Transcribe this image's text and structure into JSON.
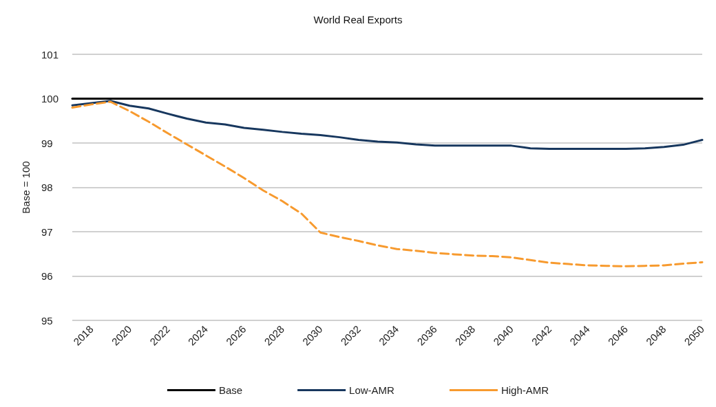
{
  "chart_data": {
    "type": "line",
    "title": "World Real Exports",
    "ylabel": "Base = 100",
    "categories": [
      null,
      "2018",
      null,
      "2020",
      null,
      "2022",
      null,
      "2024",
      null,
      "2026",
      null,
      "2028",
      null,
      "2030",
      null,
      "2032",
      null,
      "2034",
      null,
      "2036",
      null,
      "2038",
      null,
      "2040",
      null,
      "2042",
      null,
      "2044",
      null,
      "2046",
      null,
      "2048",
      null,
      "2050"
    ],
    "series": [
      {
        "name": "Base",
        "color": "#000000",
        "line_style": "solid",
        "values": [
          100,
          100,
          100,
          100,
          100,
          100,
          100,
          100,
          100,
          100,
          100,
          100,
          100,
          100,
          100,
          100,
          100,
          100,
          100,
          100,
          100,
          100,
          100,
          100,
          100,
          100,
          100,
          100,
          100,
          100,
          100,
          100,
          100,
          100
        ]
      },
      {
        "name": "Low-AMR",
        "color": "#17375e",
        "line_style": "solid",
        "values": [
          99.85,
          99.9,
          99.95,
          99.84,
          99.78,
          99.66,
          99.55,
          99.46,
          99.42,
          99.34,
          99.3,
          99.25,
          99.21,
          99.18,
          99.13,
          99.07,
          99.03,
          99.01,
          98.97,
          98.94,
          98.94,
          98.94,
          98.94,
          98.94,
          98.88,
          98.87,
          98.87,
          98.87,
          98.87,
          98.87,
          98.88,
          98.91,
          98.96,
          99.07
        ]
      },
      {
        "name": "High-AMR",
        "color": "#f79a2e",
        "line_style": "dashed",
        "values": [
          99.8,
          99.87,
          99.93,
          99.72,
          99.48,
          99.22,
          98.97,
          98.72,
          98.47,
          98.21,
          97.93,
          97.69,
          97.41,
          96.98,
          96.88,
          96.79,
          96.69,
          96.61,
          96.57,
          96.52,
          96.49,
          96.46,
          96.45,
          96.42,
          96.36,
          96.3,
          96.27,
          96.24,
          96.23,
          96.22,
          96.23,
          96.24,
          96.28,
          96.31
        ]
      }
    ],
    "ylim": [
      95,
      101
    ],
    "yticks": [
      95,
      96,
      97,
      98,
      99,
      100,
      101
    ],
    "grid": "y",
    "legend": "bottom",
    "marker": "none"
  }
}
